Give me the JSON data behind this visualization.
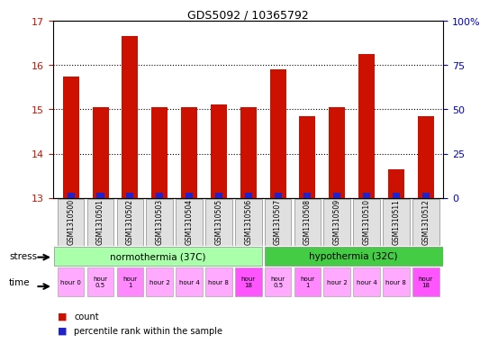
{
  "title": "GDS5092 / 10365792",
  "samples": [
    "GSM1310500",
    "GSM1310501",
    "GSM1310502",
    "GSM1310503",
    "GSM1310504",
    "GSM1310505",
    "GSM1310506",
    "GSM1310507",
    "GSM1310508",
    "GSM1310509",
    "GSM1310510",
    "GSM1310511",
    "GSM1310512"
  ],
  "red_values": [
    15.75,
    15.05,
    16.65,
    15.05,
    15.05,
    15.1,
    15.05,
    15.9,
    14.85,
    15.05,
    16.25,
    13.65,
    14.85
  ],
  "blue_values": [
    0.12,
    0.12,
    0.12,
    0.12,
    0.12,
    0.12,
    0.12,
    0.12,
    0.12,
    0.12,
    0.12,
    0.12,
    0.12
  ],
  "ylim_left": [
    13,
    17
  ],
  "ylim_right": [
    0,
    100
  ],
  "yticks_left": [
    13,
    14,
    15,
    16,
    17
  ],
  "yticks_right": [
    0,
    25,
    50,
    75,
    100
  ],
  "ytick_labels_right": [
    "0",
    "25",
    "50",
    "75",
    "100%"
  ],
  "red_color": "#cc1100",
  "blue_color": "#2222cc",
  "bar_width": 0.55,
  "grid_color": "#000000",
  "normothermia_label": "normothermia (37C)",
  "hypothermia_label": "hypothermia (32C)",
  "normothermia_color": "#aaffaa",
  "hypothermia_color": "#44cc44",
  "time_labels": [
    "hour 0",
    "hour\n0.5",
    "hour\n1",
    "hour 2",
    "hour 4",
    "hour 8",
    "hour\n18",
    "hour\n0.5",
    "hour\n1",
    "hour 2",
    "hour 4",
    "hour 8",
    "hour\n18"
  ],
  "time_bg_colors": [
    "#ffaaff",
    "#ffaaff",
    "#ff88ff",
    "#ffaaff",
    "#ffaaff",
    "#ffaaff",
    "#ff55ff",
    "#ffaaff",
    "#ff88ff",
    "#ffaaff",
    "#ffaaff",
    "#ffaaff",
    "#ff55ff"
  ],
  "stress_label": "stress",
  "time_label": "time",
  "legend_count": "count",
  "legend_percentile": "percentile rank within the sample",
  "xlabel_color": "#cc1100",
  "ylabel_right_color": "#0000cc",
  "title_color": "#000000",
  "tick_fontsize": 8,
  "bar_bottom": 13
}
